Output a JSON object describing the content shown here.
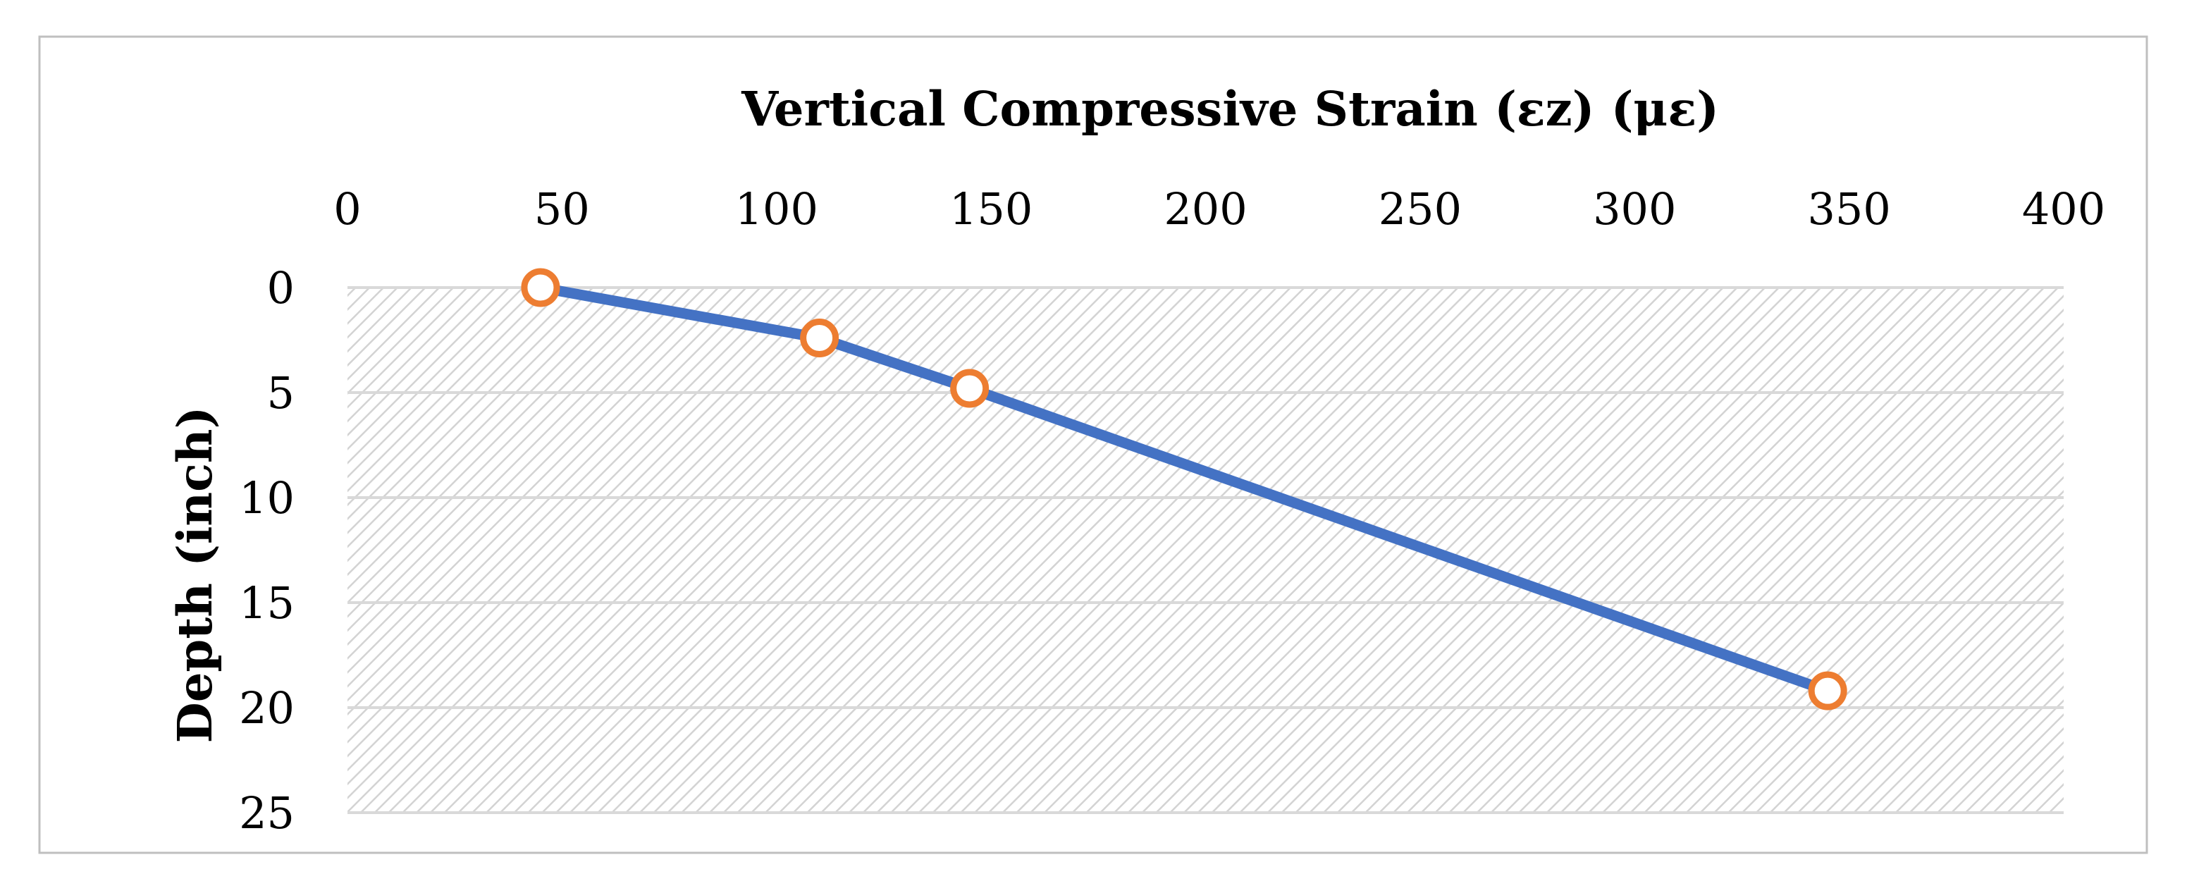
{
  "chart_data": {
    "type": "line",
    "title": "",
    "xlabel": "Vertical Compressive Strain (εz) (με)",
    "ylabel": "Depth (inch)",
    "x_axis_position": "top",
    "y_axis_inverted": true,
    "xlim": [
      0,
      400
    ],
    "ylim": [
      0,
      25
    ],
    "x_ticks": [
      0,
      50,
      100,
      150,
      200,
      250,
      300,
      350,
      400
    ],
    "y_ticks": [
      0,
      5,
      10,
      15,
      20,
      25
    ],
    "grid": true,
    "legend": "none",
    "plot_background": "diagonal-hatch",
    "series": [
      {
        "x": [
          45,
          110,
          145,
          345
        ],
        "y": [
          0,
          2.4,
          4.8,
          19.2
        ],
        "line_color": "#4472C4",
        "marker": "hollow-circle",
        "marker_color": "#ED7D31"
      }
    ]
  }
}
